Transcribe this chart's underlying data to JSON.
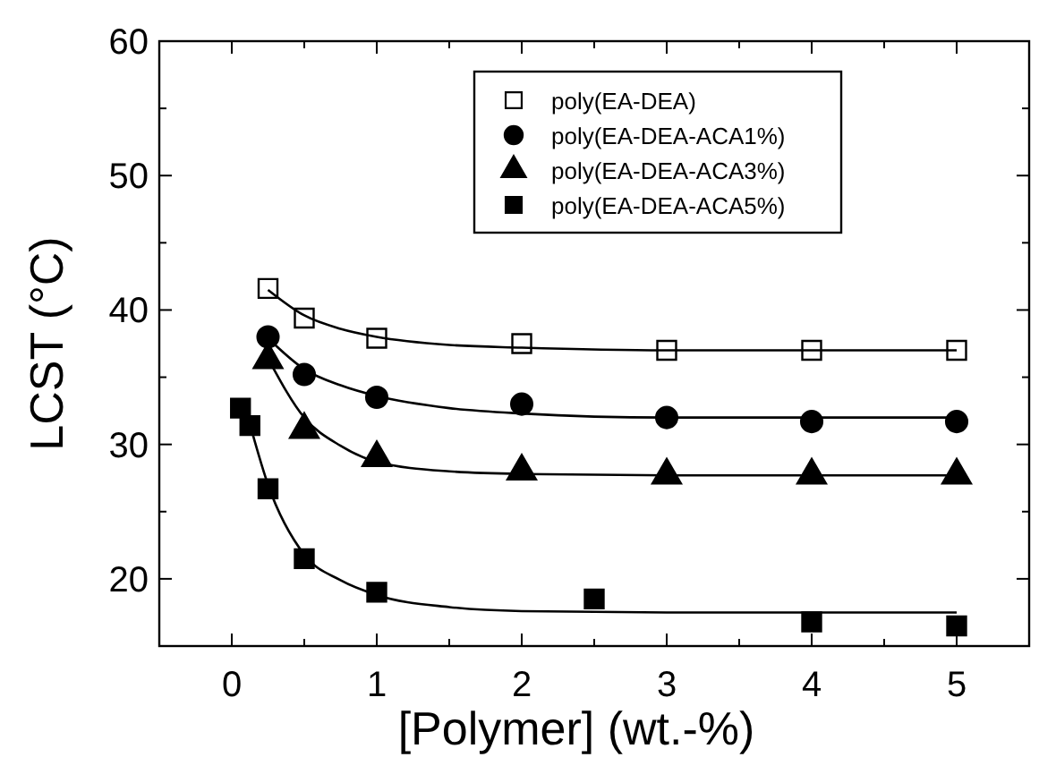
{
  "chart_data": {
    "type": "scatter",
    "xlabel": "[Polymer] (wt.-%)",
    "ylabel": "LCST (°C)",
    "xlim": [
      -0.5,
      5.5
    ],
    "ylim": [
      15,
      60
    ],
    "xticks": [
      0,
      {
        "value": 0.5,
        "label": null
      },
      1,
      {
        "value": 1.5,
        "label": null
      },
      2,
      {
        "value": 2.5,
        "label": null
      },
      3,
      {
        "value": 3.5,
        "label": null
      },
      4,
      {
        "value": 4.5,
        "label": null
      },
      5
    ],
    "yticks": [
      {
        "value": 15,
        "label": null
      },
      20,
      {
        "value": 25,
        "label": null
      },
      30,
      {
        "value": 35,
        "label": null
      },
      40,
      {
        "value": 45,
        "label": null
      },
      50,
      {
        "value": 55,
        "label": null
      },
      60
    ],
    "grid": false,
    "legend": "top right",
    "series": [
      {
        "name": "poly(EA-DEA)",
        "color": "#ffffff",
        "marker": "square",
        "x": [
          0.25,
          0.5,
          1,
          2,
          3,
          4,
          5
        ],
        "values": [
          41.6,
          39.4,
          37.9,
          37.5,
          37,
          37,
          37
        ]
      },
      {
        "name": "poly(EA-DEA-ACA1%)",
        "color": "#000000",
        "marker": "circle",
        "x": [
          0.25,
          0.5,
          1,
          2,
          3,
          4,
          5
        ],
        "values": [
          38,
          35.2,
          33.5,
          33,
          32,
          31.7,
          31.7
        ]
      },
      {
        "name": "poly(EA-DEA-ACA3%)",
        "color": "#000000",
        "marker": "triangle",
        "x": [
          0.25,
          0.5,
          1,
          2,
          3,
          4,
          5
        ],
        "values": [
          36.3,
          31.1,
          29,
          28,
          27.7,
          27.7,
          27.7
        ]
      },
      {
        "name": "poly(EA-DEA-ACA5%)",
        "color": "#000000",
        "marker": "square",
        "x": [
          0.06,
          0.125,
          0.25,
          0.5,
          1,
          2.5,
          4,
          5
        ],
        "values": [
          32.7,
          31.4,
          26.7,
          21.5,
          19,
          18.5,
          16.8,
          16.5
        ]
      },
      {
        "type": "line",
        "color": "#000000",
        "line_style": "solid",
        "x": [
          0.25,
          0.5,
          0.75,
          1,
          1.5,
          2,
          3,
          5
        ],
        "values": [
          41.5,
          39.6,
          38.6,
          38,
          37.4,
          37.2,
          37,
          37
        ]
      },
      {
        "type": "line",
        "color": "#000000",
        "line_style": "solid",
        "x": [
          0.25,
          0.5,
          0.75,
          1,
          1.5,
          2,
          3,
          5
        ],
        "values": [
          37.9,
          35.6,
          34.4,
          33.6,
          32.7,
          32.3,
          32,
          32
        ]
      },
      {
        "type": "line",
        "color": "#000000",
        "line_style": "solid",
        "x": [
          0.25,
          0.5,
          0.75,
          1,
          1.5,
          2,
          3,
          5
        ],
        "values": [
          36.4,
          32,
          29.9,
          28.7,
          28,
          27.8,
          27.7,
          27.7
        ]
      },
      {
        "type": "line",
        "color": "#000000",
        "line_style": "solid",
        "x": [
          0.125,
          0.25,
          0.5,
          0.75,
          1,
          1.5,
          2,
          3,
          5
        ],
        "values": [
          31.5,
          27,
          21.8,
          19.9,
          18.8,
          17.9,
          17.6,
          17.5,
          17.5
        ]
      }
    ]
  }
}
